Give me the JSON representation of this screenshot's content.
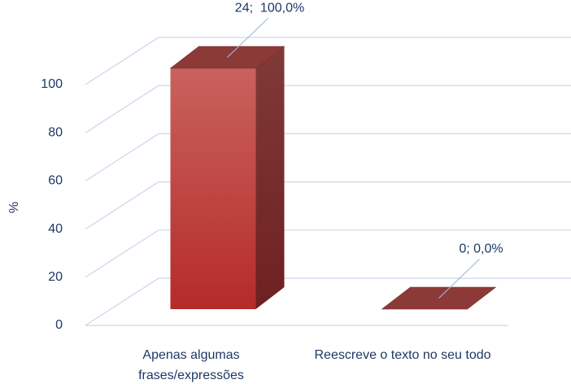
{
  "chart_data": {
    "type": "bar3d",
    "categories": [
      "Apenas algumas frases/expressões",
      "Reescreve o texto no seu todo"
    ],
    "values": [
      100,
      0
    ],
    "value_labels": [
      "24;  100,0%",
      "0; 0,0%"
    ],
    "ylabel": "%",
    "ylim": [
      0,
      100
    ],
    "yticks": [
      0,
      20,
      40,
      60,
      80,
      100
    ],
    "grid": true,
    "color": "#c0403c"
  }
}
